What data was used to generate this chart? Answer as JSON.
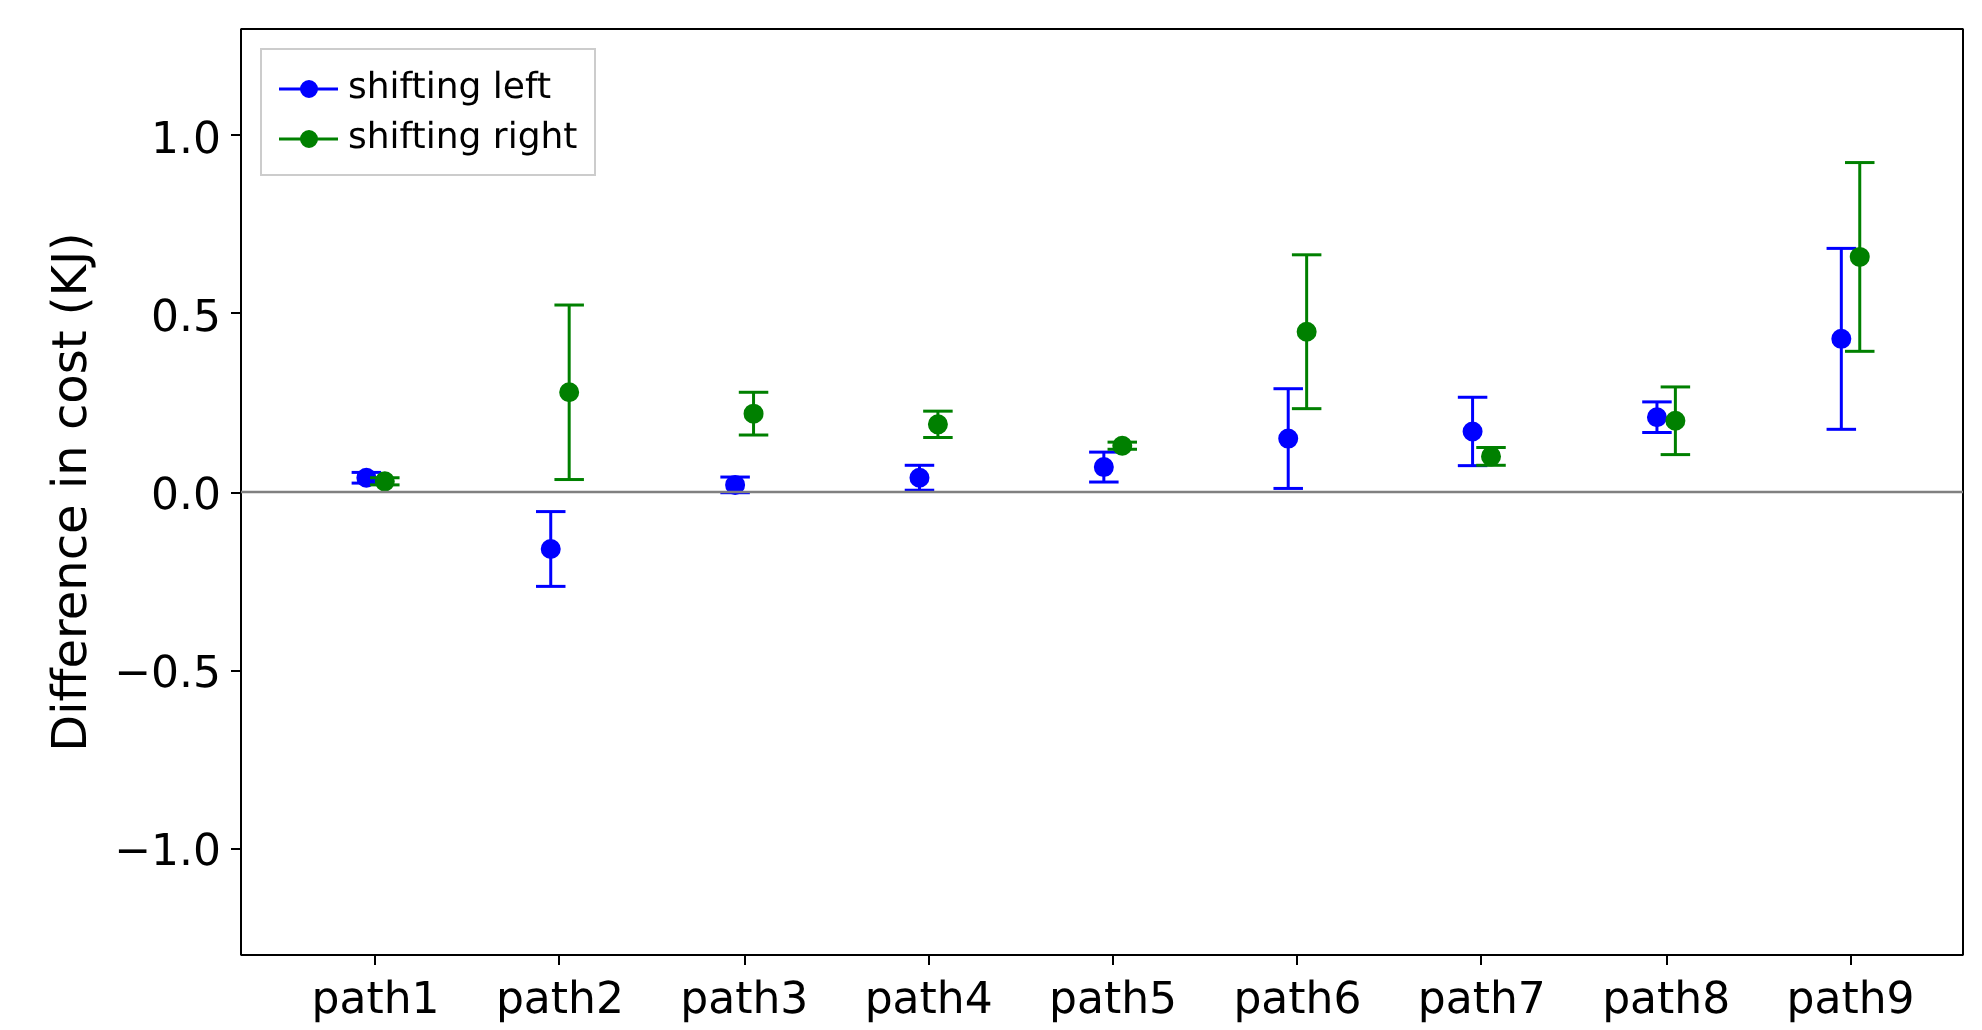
{
  "chart_data": {
    "type": "scatter",
    "ylabel": "Difference in cost (KJ)",
    "categories": [
      "path1",
      "path2",
      "path3",
      "path4",
      "path5",
      "path6",
      "path7",
      "path8",
      "path9"
    ],
    "series": [
      {
        "name": "shifting left",
        "color": "#0000ff",
        "values": [
          0.04,
          -0.16,
          0.02,
          0.04,
          0.07,
          0.15,
          0.17,
          0.21,
          0.43
        ],
        "errors": [
          0.015,
          0.105,
          0.022,
          0.035,
          0.042,
          0.14,
          0.096,
          0.043,
          0.254
        ]
      },
      {
        "name": "shifting right",
        "color": "#008000",
        "values": [
          0.03,
          0.28,
          0.22,
          0.19,
          0.13,
          0.45,
          0.1,
          0.2,
          0.66
        ],
        "errors": [
          0.01,
          0.245,
          0.06,
          0.037,
          0.01,
          0.216,
          0.025,
          0.095,
          0.265
        ]
      }
    ],
    "ylim": [
      -1.3,
      1.3
    ],
    "yticks": [
      {
        "value": -1.0,
        "label": "−1.0"
      },
      {
        "value": -0.5,
        "label": "−0.5"
      },
      {
        "value": 0.0,
        "label": "0.0"
      },
      {
        "value": 0.5,
        "label": "0.5"
      },
      {
        "value": 1.0,
        "label": "1.0"
      }
    ],
    "ref_lines": [
      {
        "axis": "y",
        "value": 0,
        "color": "#808080"
      }
    ],
    "grid": false,
    "legend": "top left",
    "marker": "circle"
  }
}
